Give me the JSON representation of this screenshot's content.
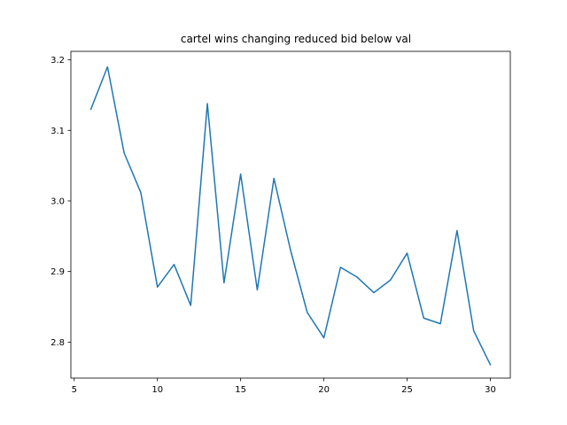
{
  "chart_data": {
    "type": "line",
    "title": "cartel wins changing reduced bid below val",
    "xlabel": "",
    "ylabel": "",
    "xlim": [
      4.8,
      31.2
    ],
    "ylim": [
      2.749,
      3.212
    ],
    "grid": false,
    "x_ticks": [
      5,
      10,
      15,
      20,
      25,
      30
    ],
    "y_ticks": [
      2.8,
      2.9,
      3.0,
      3.1,
      3.2
    ],
    "x_tick_labels": [
      "5",
      "10",
      "15",
      "20",
      "25",
      "30"
    ],
    "y_tick_labels": [
      "2.8",
      "2.9",
      "3.0",
      "3.1",
      "3.2"
    ],
    "series": [
      {
        "color": "#1f77b4",
        "x": [
          6,
          7,
          8,
          9,
          10,
          11,
          12,
          13,
          14,
          15,
          16,
          17,
          18,
          19,
          20,
          21,
          22,
          23,
          24,
          25,
          26,
          27,
          28,
          29,
          30
        ],
        "y": [
          3.13,
          3.19,
          3.068,
          3.012,
          2.878,
          2.91,
          2.852,
          3.138,
          2.884,
          3.038,
          2.874,
          3.032,
          2.93,
          2.842,
          2.806,
          2.906,
          2.892,
          2.87,
          2.888,
          2.926,
          2.834,
          2.826,
          2.958,
          2.816,
          2.768
        ]
      }
    ]
  }
}
